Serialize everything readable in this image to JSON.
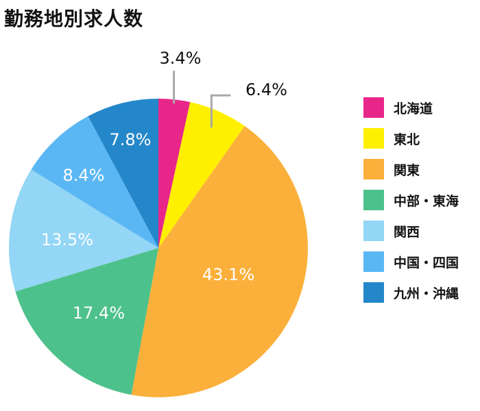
{
  "chart_data": {
    "type": "pie",
    "title": "勤務地別求人数",
    "categories": [
      "北海道",
      "東北",
      "関東",
      "中部・東海",
      "関西",
      "中国・四国",
      "九州・沖縄"
    ],
    "values": [
      3.4,
      6.4,
      43.1,
      17.4,
      13.5,
      8.4,
      7.8
    ],
    "labels": [
      "3.4%",
      "6.4%",
      "43.1%",
      "17.4%",
      "13.5%",
      "8.4%",
      "7.8%"
    ],
    "colors": [
      "#e8268a",
      "#fff000",
      "#fbb03b",
      "#4dc18b",
      "#93d6f5",
      "#5bb7f4",
      "#2487c9"
    ],
    "legend": "right"
  }
}
